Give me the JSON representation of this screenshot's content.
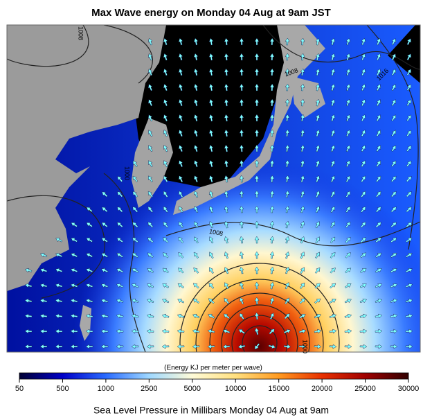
{
  "title": "Max Wave energy on Monday 04 Aug at 9am JST",
  "contour_labels": [
    "1008",
    "1008",
    "1016",
    "1000",
    "1008",
    "1000"
  ],
  "colorbar": {
    "label": "(Energy KJ per meter per wave)",
    "ticks": [
      "50",
      "500",
      "1000",
      "2500",
      "5000",
      "10000",
      "15000",
      "20000",
      "25000",
      "30000"
    ],
    "colors": [
      "#000033",
      "#0000c8",
      "#2a6bff",
      "#9fd8ff",
      "#fffbd8",
      "#ffe080",
      "#ff9a20",
      "#e83000",
      "#a00000",
      "#300000"
    ]
  },
  "caption": "Sea Level Pressure in Millibars Monday 04 Aug at 9am"
}
